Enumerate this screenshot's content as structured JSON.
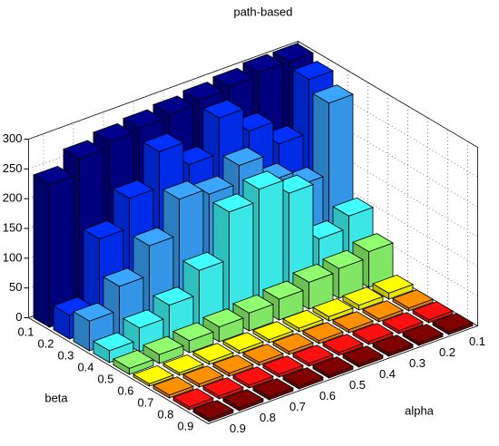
{
  "chart_data": {
    "type": "bar3d",
    "title": "path-based",
    "xlabel": "alpha",
    "ylabel": "beta",
    "x": [
      "0.1",
      "0.2",
      "0.3",
      "0.4",
      "0.5",
      "0.6",
      "0.7",
      "0.8",
      "0.9"
    ],
    "y": [
      "0.1",
      "0.2",
      "0.3",
      "0.4",
      "0.5",
      "0.6",
      "0.7",
      "0.8",
      "0.9"
    ],
    "zlim": [
      0,
      300
    ],
    "zticks": [
      0,
      50,
      100,
      150,
      200,
      250,
      300
    ],
    "grid": true,
    "series": [
      {
        "color": "#00008c",
        "values": [
          300,
          300,
          295,
          290,
          285,
          280,
          275,
          265,
          240
        ]
      },
      {
        "color": "#0030ff",
        "values": [
          290,
          200,
          240,
          280,
          220,
          260,
          200,
          150,
          40
        ]
      },
      {
        "color": "#3aa6ff",
        "values": [
          270,
          150,
          175,
          220,
          190,
          200,
          140,
          90,
          50
        ]
      },
      {
        "color": "#40ffff",
        "values": [
          100,
          80,
          175,
          200,
          180,
          100,
          60,
          40,
          20
        ]
      },
      {
        "color": "#90ff70",
        "values": [
          60,
          50,
          45,
          35,
          30,
          25,
          20,
          15,
          10
        ]
      },
      {
        "color": "#ffff00",
        "values": [
          10,
          8,
          7,
          6,
          5,
          5,
          5,
          4,
          4
        ]
      },
      {
        "color": "#ff9000",
        "values": [
          5,
          5,
          5,
          5,
          5,
          5,
          5,
          5,
          5
        ]
      },
      {
        "color": "#ff1010",
        "values": [
          5,
          5,
          5,
          5,
          5,
          5,
          5,
          5,
          5
        ]
      },
      {
        "color": "#800000",
        "values": [
          5,
          5,
          5,
          5,
          5,
          5,
          5,
          5,
          5
        ]
      }
    ]
  }
}
